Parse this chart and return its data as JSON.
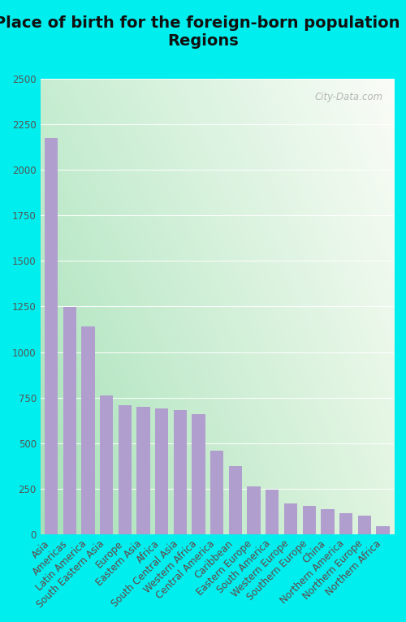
{
  "title": "Place of birth for the foreign-born population -\nRegions",
  "categories": [
    "Asia",
    "Americas",
    "Latin America",
    "South Eastern Asia",
    "Europe",
    "Eastern Asia",
    "Africa",
    "South Central Asia",
    "Western Africa",
    "Central America",
    "Caribbean",
    "Eastern Europe",
    "South America",
    "Western Europe",
    "Southern Europe",
    "China",
    "Northern America",
    "Northern Europe",
    "Northern Africa"
  ],
  "values": [
    2175,
    1245,
    1140,
    760,
    710,
    700,
    690,
    680,
    660,
    460,
    375,
    265,
    245,
    170,
    155,
    140,
    115,
    105,
    45
  ],
  "bar_color": "#b09ece",
  "ylim": [
    0,
    2500
  ],
  "yticks": [
    0,
    250,
    500,
    750,
    1000,
    1250,
    1500,
    1750,
    2000,
    2250,
    2500
  ],
  "outer_bg": "#00eeee",
  "watermark": "City-Data.com",
  "title_fontsize": 14,
  "tick_fontsize": 8.5,
  "ytick_color": "#555555",
  "xtick_color": "#664444"
}
